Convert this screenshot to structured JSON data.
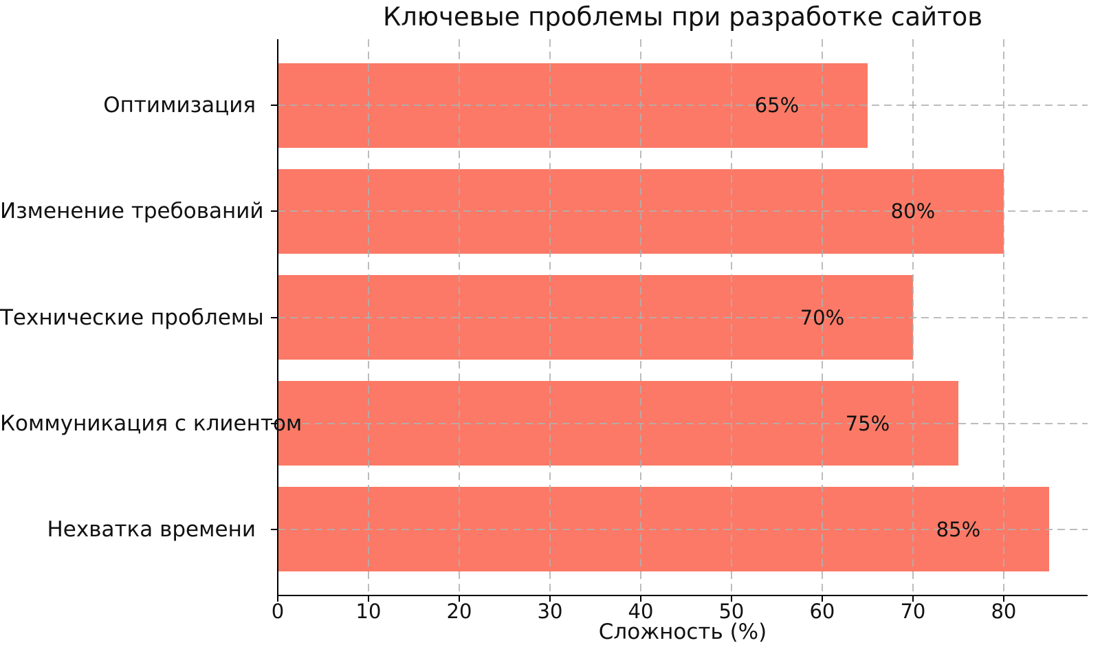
{
  "chart_data": {
    "type": "bar",
    "orientation": "horizontal",
    "title": "Ключевые проблемы при разработке сайтов",
    "xlabel": "Сложность (%)",
    "ylabel": "",
    "categories": [
      "Оптимизация",
      "Изменение требований",
      "Технические проблемы",
      "Коммуникация с клиентом",
      "Нехватка времени"
    ],
    "values": [
      65,
      80,
      70,
      75,
      85
    ],
    "value_labels": [
      "65%",
      "80%",
      "70%",
      "75%",
      "85%"
    ],
    "xticks": [
      0,
      10,
      20,
      30,
      40,
      50,
      60,
      70,
      80
    ],
    "xlim": [
      0,
      89.25
    ],
    "grid": "dashed both axes, drawn above bars",
    "legend": "none",
    "colors": {
      "bar": "#FB7966",
      "grid": "#b0b0b0",
      "text": "#111111",
      "spine": "#000000",
      "background": "#ffffff"
    }
  }
}
